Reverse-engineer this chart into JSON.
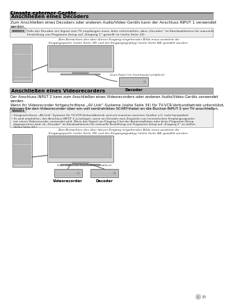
{
  "page_title": "Einsatz externer Geräte",
  "section1_title": "Anschließen eines Decoders",
  "section1_body": "Zum Anschließen eines Decoders oder anderen Audio/Video-Geräts kann der Anschluss INPUT 1 verwendet\nwerden.",
  "section1_note": "Falls der Decoder ein Signal vom TV empfangen muss, bitte sicherstellen, dass „Decoder“ im Kanalwahlmenu für manuelle\nEinstellung von Programm-Setup auf „Eingang 1“ gestellt ist (siehe Seite 24).",
  "section1_caption": "Zum Betrachten des über diesen Eingang eingehenden Bilds muss zunächst die\nEingangsquelle (siehe Seite 39) und der Eingangsignaltyp (siehe Seite 44) gewählt werden.",
  "section1_scart": "Scart-Kabel (im Fachhandel erhältlich)",
  "section1_label": "Decoder",
  "section2_title": "Anschließen eines Videorecorders",
  "section2_body1": "Der Anschluss INPUT 2 kann zum Anschließen eines Videorecorders oder anderen Audio/Video-Geräts verwendet",
  "section2_body2": "werden.",
  "section2_body3": "Wenn Ihr Videorecorder fortgeschrittene „AV Link“-Systeme (siehe Seite 34) für TV-VCR-Verbundbetrieb unterstützt,",
  "section2_body4": "können Sie den Videorecorder über ein voll verdrahtetes SCART-Kabel an die Buchse INPUT 2 am TV anschließen.",
  "section2_note1": "Fortgeschrittene „AV-Link“-Systeme für TV-VCR-Verbundbetrieb sind mit manchen externen Quellen u.U. nicht kompatibel.",
  "section2_note2a": "Es wird empfohlen, den Anschluss INPUT 2 zu belegen, wenn ein Decoder zum Zuspielen von terrestrischen Empfangssignalen",
  "section2_note2b": "mit einem Videorecorder verwendet wird. Wenn das Signal von Eingang 2 bei der Autoinstallation oder beim Programm-Setup",
  "section2_note2c": "abgespeichert wird, ist „Decoder“ im Kanalwahlmenu für manuelle Einstellung von Programm-Setup auf „Eingang 2“ zu stellen.",
  "section2_note2d": "(Siehe Seite 24.)",
  "section2_caption": "Zum Betrachten des über diesen Eingang eingehenden Bilds muss zunächst die\nEingangsquelle (siehe Seite 39) und der Eingangsignaltyp (siehe Seite 44) gewählt werden.",
  "section2_scart": "Scart-Kabel (im Fachhandel erhältlich)",
  "section2_label1": "Videorecorder",
  "section2_label2": "Decoder",
  "page_number": "33",
  "bg_color": "#ffffff",
  "section_title_bg": "#b0b0b0",
  "hint_bg": "#eeeeee",
  "text_color": "#111111",
  "title_color": "#000000",
  "note_color": "#333333"
}
